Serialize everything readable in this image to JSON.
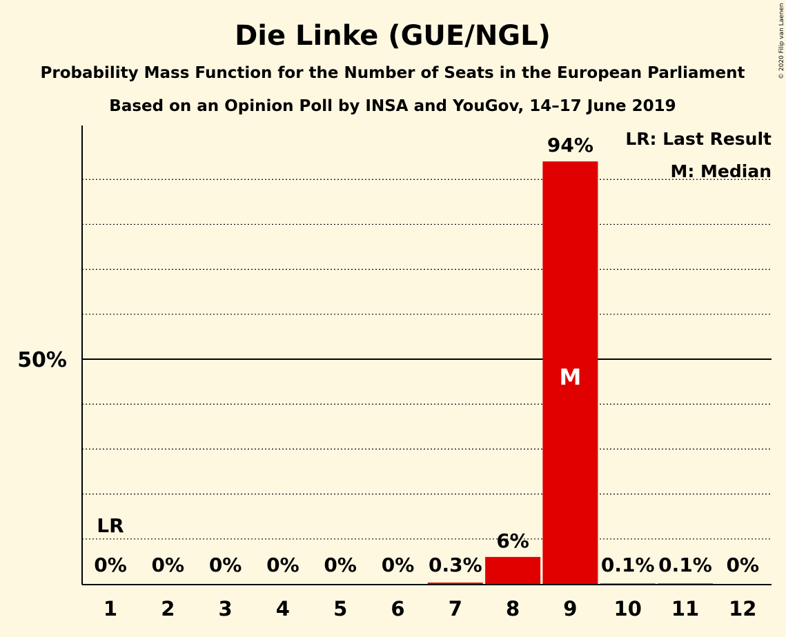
{
  "chart_data": {
    "type": "bar",
    "title": "Die Linke (GUE/NGL)",
    "subtitle": "Probability Mass Function for the Number of Seats in the European Parliament",
    "subtitle2": "Based on an Opinion Poll by INSA and YouGov, 14–17 June 2019",
    "categories": [
      "1",
      "2",
      "3",
      "4",
      "5",
      "6",
      "7",
      "8",
      "9",
      "10",
      "11",
      "12"
    ],
    "values": [
      0,
      0,
      0,
      0,
      0,
      0,
      0.3,
      6,
      94,
      0.1,
      0.1,
      0
    ],
    "value_labels": [
      "0%",
      "0%",
      "0%",
      "0%",
      "0%",
      "0%",
      "0.3%",
      "6%",
      "94%",
      "0.1%",
      "0.1%",
      "0%"
    ],
    "ylim": [
      0,
      102
    ],
    "y_ticks": [
      {
        "value": 50,
        "label": "50%"
      }
    ],
    "gridlines": [
      10,
      20,
      30,
      40,
      60,
      70,
      80,
      90
    ],
    "bar_color": "#e00000",
    "last_result_category": "1",
    "last_result_marker": "LR",
    "median_category": "9",
    "median_marker": "M",
    "legend": [
      "LR: Last Result",
      "M: Median"
    ],
    "legend_position": "top-right",
    "copyright": "© 2020 Filip van Laenen"
  }
}
